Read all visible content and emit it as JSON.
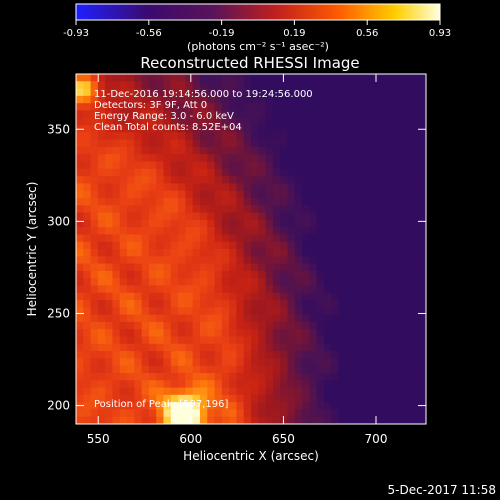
{
  "chart_data": {
    "type": "heatmap",
    "title": "Reconstructed RHESSI Image",
    "xlabel": "Heliocentric X (arcsec)",
    "ylabel": "Heliocentric Y (arcsec)",
    "xlim": [
      538,
      727
    ],
    "ylim": [
      190,
      380
    ],
    "xticks": [
      550,
      600,
      650,
      700
    ],
    "yticks": [
      200,
      250,
      300,
      350
    ],
    "colorbar": {
      "unit_label": "(photons cm⁻² s⁻¹ asec⁻²)",
      "range": [
        -0.93,
        0.93
      ],
      "ticks": [
        "-0.93",
        "-0.56",
        "-0.19",
        "0.19",
        "0.56",
        "0.93"
      ],
      "colors": [
        "#1f1fff",
        "#3a0a6e",
        "#5a1458",
        "#c0201e",
        "#ff5a00",
        "#ffd000",
        "#ffffe0"
      ]
    },
    "annotations": [
      "11-Dec-2016 19:14:56.000 to 19:24:56.000",
      "Detectors: 3F 9F, Att 0",
      "Energy Range: 3.0 - 6.0 keV",
      "Clean    Total counts: 8.52E+04"
    ],
    "peak_label": "Position of Peak: [597,196]",
    "peak": {
      "x": 597,
      "y": 196
    },
    "secondary_peak": {
      "x": 542,
      "y": 372
    },
    "background_colors": {
      "bright": "#e8381a",
      "mid": "#b81a1a",
      "dark": "#4a1452",
      "edge": "#3c1066"
    }
  },
  "footer": {
    "timestamp": "5-Dec-2017 11:58"
  }
}
